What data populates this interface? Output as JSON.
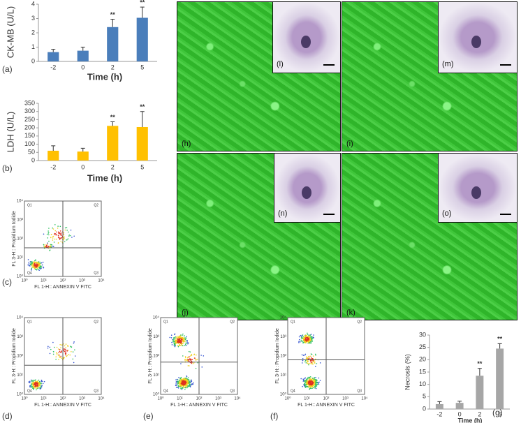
{
  "chart_data": [
    {
      "type": "bar",
      "panel": "(a)",
      "y_label": "CK-MB (U/L)",
      "x_label": "Time (h)",
      "categories": [
        "-2",
        "0",
        "2",
        "5"
      ],
      "values": [
        0.65,
        0.75,
        2.4,
        3.05
      ],
      "errors": [
        0.2,
        0.25,
        0.55,
        0.75
      ],
      "annotations": [
        null,
        null,
        "**",
        "**"
      ],
      "color": "#4a7ebb",
      "ylim": [
        0,
        4
      ],
      "yticks": [
        0,
        1,
        2,
        3,
        4
      ]
    },
    {
      "type": "bar",
      "panel": "(b)",
      "y_label": "LDH (U/L)",
      "x_label": "Time (h)",
      "categories": [
        "-2",
        "0",
        "2",
        "5"
      ],
      "values": [
        60,
        55,
        212,
        205
      ],
      "errors": [
        30,
        20,
        25,
        95
      ],
      "annotations": [
        null,
        null,
        "**",
        "**"
      ],
      "color": "#ffc000",
      "ylim": [
        0,
        350
      ],
      "yticks": [
        0,
        50,
        100,
        150,
        200,
        250,
        300,
        350
      ]
    },
    {
      "type": "bar",
      "panel": "(g)",
      "y_label": "Necrosis (%)",
      "x_label": "Time (h)",
      "categories": [
        "-2",
        "0",
        "2",
        "5"
      ],
      "values": [
        2,
        2.5,
        13.5,
        24.5
      ],
      "errors": [
        1,
        0.7,
        3,
        2
      ],
      "annotations": [
        null,
        null,
        "**",
        "**"
      ],
      "color": "#a6a6a6",
      "ylim": [
        0,
        30
      ],
      "yticks": [
        0,
        5,
        10,
        15,
        20,
        25,
        30
      ]
    }
  ],
  "flow_panels": [
    {
      "label": "(c)",
      "x_label": "FL 1-H:: ANNEXIN V FITC",
      "y_label": "FL 3-H:: Propidium Iodide",
      "quadrants": [
        "Q1",
        "Q2",
        "Q3",
        "Q4"
      ],
      "ticks": [
        "10⁰",
        "10¹",
        "10²",
        "10³",
        "10⁴"
      ]
    },
    {
      "label": "(d)",
      "x_label": "FL 1-H:: ANNEXIN V FITC",
      "y_label": "FL 3-H:: Propidium Iodide",
      "quadrants": [
        "Q1",
        "Q2",
        "Q3",
        "Q4"
      ],
      "ticks": [
        "10⁰",
        "10¹",
        "10²",
        "10³",
        "10⁴"
      ]
    },
    {
      "label": "(e)",
      "x_label": "FL 1-H:: ANNEXIN V FITC",
      "y_label": "FL 3-H:: Propidium Iodide",
      "quadrants": [
        "Q1",
        "Q2",
        "Q3",
        "Q4"
      ],
      "ticks": [
        "10⁰",
        "10¹",
        "10²",
        "10³",
        "10⁴"
      ]
    },
    {
      "label": "(f)",
      "x_label": "FL 1-H:: ANNEXIN V FITC",
      "y_label": "FL 3-H:: Propidium Iodide",
      "quadrants": [
        "Q1",
        "Q2",
        "Q3",
        "Q4"
      ],
      "ticks": [
        "10⁰",
        "10¹",
        "10²",
        "10³",
        "10⁴"
      ]
    }
  ],
  "micrograph_labels": [
    "(h)",
    "(i)",
    "(j)",
    "(k)"
  ],
  "inset_labels": [
    "(l)",
    "(m)",
    "(n)",
    "(o)"
  ]
}
